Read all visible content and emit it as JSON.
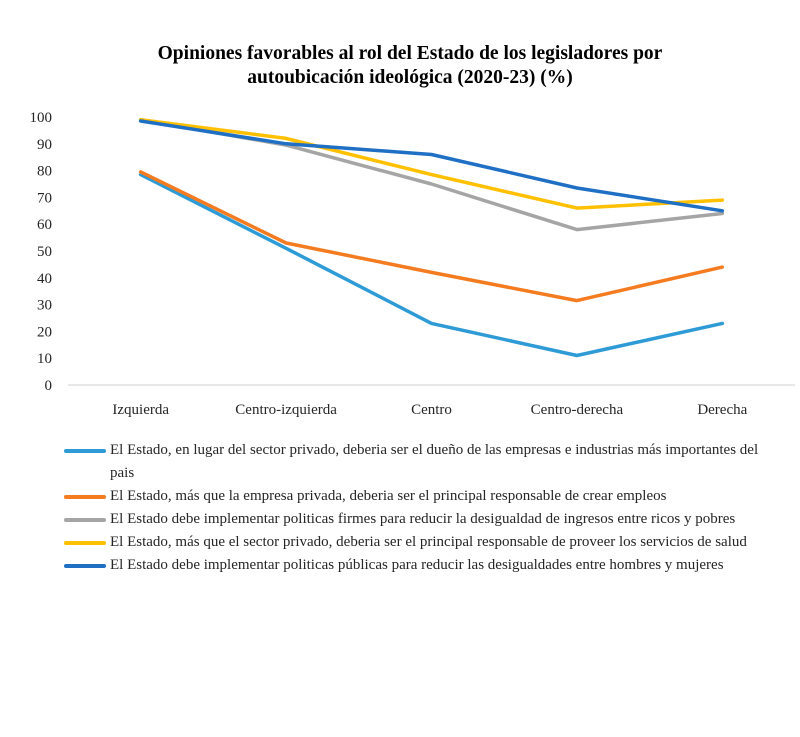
{
  "chart_data": {
    "type": "line",
    "title": "Opiniones  favorables al rol del Estado de los legisladores por autoubicación  ideológica (2020-23) (%)",
    "title_lines": [
      "Opiniones  favorables al rol del Estado de los legisladores por",
      "autoubicación  ideológica (2020-23) (%)"
    ],
    "xlabel": "",
    "ylabel": "",
    "ylim": [
      0,
      100
    ],
    "yticks": [
      0,
      10,
      20,
      30,
      40,
      50,
      60,
      70,
      80,
      90,
      100
    ],
    "grid": false,
    "legend_position": "bottom",
    "categories": [
      "Izquierda",
      "Centro-izquierda",
      "Centro",
      "Centro-derecha",
      "Derecha"
    ],
    "series": [
      {
        "name": "El Estado, en lugar del sector privado, debería ser el dueño de las empresas e industrias más importantes del país",
        "color": "#2E9BD6",
        "values": [
          78.5,
          51,
          23,
          11,
          23
        ]
      },
      {
        "name": "El Estado, más que la empresa privada, debería ser el principal responsable de crear empleos",
        "color": "#F47B20",
        "values": [
          79.5,
          53,
          42,
          31.5,
          44
        ]
      },
      {
        "name": "El Estado debe implementar políticas firmes para reducir la desigualdad de ingresos entre ricos y pobres",
        "color": "#A5A5A5",
        "values": [
          99,
          89.5,
          75,
          58,
          64
        ]
      },
      {
        "name": "El Estado, más que el sector privado, debería ser el principal responsable de proveer los servicios de salud",
        "color": "#FFC000",
        "values": [
          99,
          92,
          78.5,
          66,
          69
        ]
      },
      {
        "name": "El Estado debe implementar políticas públicas para reducir las desigualdades entre hombres y mujeres",
        "color": "#1F6FC5",
        "values": [
          98.5,
          90,
          86,
          73.5,
          65
        ]
      }
    ]
  },
  "legend": {
    "items": [
      {
        "label": "El Estado, en lugar del sector privado, deberia ser el dueño de las empresas e industrias más importantes del pais"
      },
      {
        "label": "El Estado, más que la empresa privada, deberia ser el principal responsable de crear empleos"
      },
      {
        "label": "El Estado debe implementar politicas firmes para reducir la desigualdad de ingresos entre ricos y pobres"
      },
      {
        "label": "El Estado, más que el sector privado, deberia ser el principal responsable de proveer los servicios de salud"
      },
      {
        "label": "El Estado debe implementar politicas públicas para reducir las desigualdades entre hombres y mujeres"
      }
    ]
  }
}
